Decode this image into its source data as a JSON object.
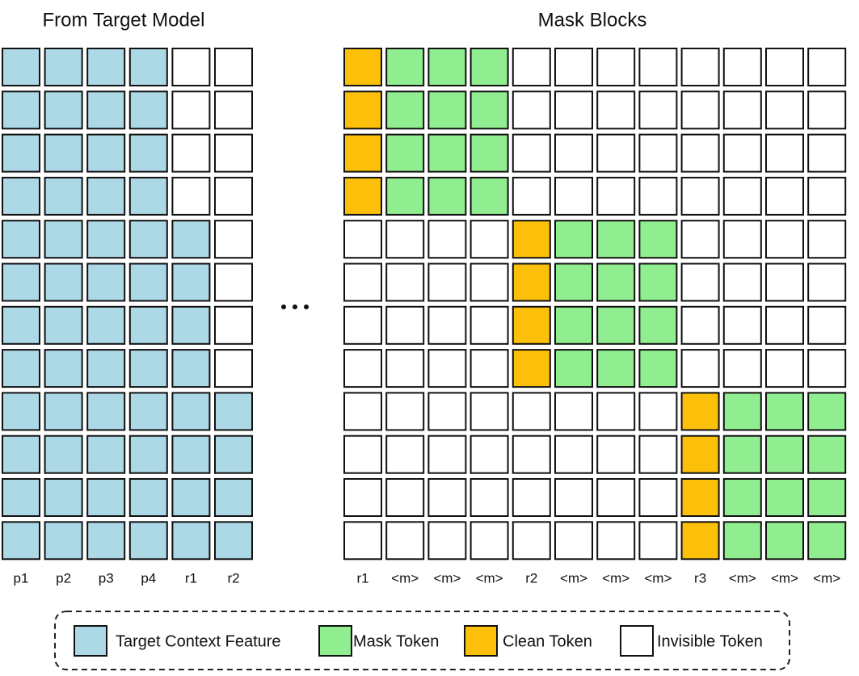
{
  "left": {
    "title": "From Target Model",
    "column_labels": [
      "p1",
      "p2",
      "p3",
      "p4",
      "r1",
      "r2"
    ]
  },
  "right": {
    "title": "Mask Blocks",
    "column_labels": [
      "r1",
      "<m>",
      "<m>",
      "<m>",
      "r2",
      "<m>",
      "<m>",
      "<m>",
      "r3",
      "<m>",
      "<m>",
      "<m>"
    ]
  },
  "legend": {
    "items": [
      {
        "label": "Target Context Feature"
      },
      {
        "label": "Mask Token"
      },
      {
        "label": "Clean Token"
      },
      {
        "label": "Invisible Token"
      }
    ]
  }
}
